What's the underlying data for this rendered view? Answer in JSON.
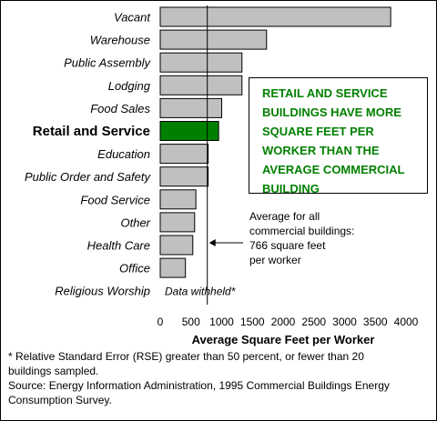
{
  "chart_data": {
    "type": "bar",
    "orientation": "horizontal",
    "categories": [
      "Vacant",
      "Warehouse",
      "Public Assembly",
      "Lodging",
      "Food Sales",
      "Retail and Service",
      "Education",
      "Public Order and Safety",
      "Food Service",
      "Other",
      "Health Care",
      "Office",
      "Religious Worship"
    ],
    "values": [
      3750,
      1730,
      1330,
      1330,
      1000,
      950,
      780,
      780,
      580,
      560,
      530,
      410,
      null
    ],
    "highlight_category": "Retail and Service",
    "withheld_label": "Data withheld*",
    "xlabel": "Average Square Feet per Worker",
    "xlim": [
      0,
      4000
    ],
    "xticks": [
      0,
      500,
      1000,
      1500,
      2000,
      2500,
      3000,
      3500,
      4000
    ],
    "average": {
      "value": 766,
      "label_lines": [
        "Average for all",
        "commercial buildings:",
        "766 square feet",
        "per worker"
      ]
    },
    "callout_lines": [
      "RETAIL AND SERVICE",
      "BUILDINGS HAVE MORE",
      "SQUARE FEET PER",
      "WORKER THAN THE",
      "AVERAGE COMMERCIAL",
      "BUILDING"
    ],
    "colors": {
      "bar": "#c0c0c0",
      "highlight": "#008000",
      "callout_text": "#008000",
      "border": "#000000"
    }
  },
  "footnote": {
    "lines": [
      "* Relative Standard Error (RSE) greater than 50 percent, or fewer than 20",
      "buildings sampled.",
      "Source:  Energy Information Administration, 1995 Commercial Buildings Energy",
      "Consumption Survey."
    ]
  }
}
